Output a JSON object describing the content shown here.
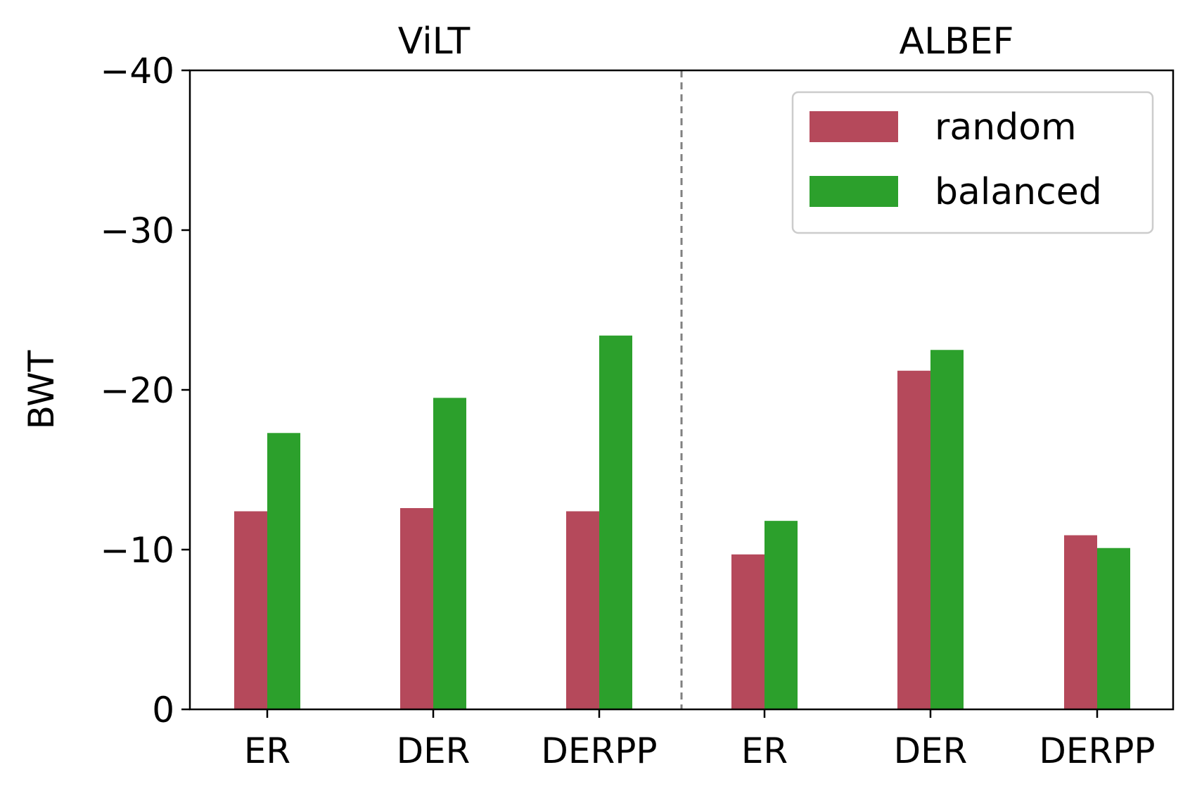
{
  "chart_data": {
    "type": "bar",
    "ylabel": "BWT",
    "xlabel": "",
    "yaxis_inverted": true,
    "ylim": [
      0,
      -40
    ],
    "yticks": [
      0,
      -10,
      -20,
      -30,
      -40
    ],
    "grid": false,
    "legend_position": "top-right",
    "groups": [
      {
        "title": "ViLT",
        "categories": [
          "ER",
          "DER",
          "DERPP"
        ],
        "series": [
          {
            "name": "random",
            "color": "#b5495b",
            "values": [
              -12.4,
              -12.6,
              -12.4
            ]
          },
          {
            "name": "balanced",
            "color": "#2ca02c",
            "values": [
              -17.3,
              -19.5,
              -23.4
            ]
          }
        ]
      },
      {
        "title": "ALBEF",
        "categories": [
          "ER",
          "DER",
          "DERPP"
        ],
        "series": [
          {
            "name": "random",
            "color": "#b5495b",
            "values": [
              -9.7,
              -21.2,
              -10.9
            ]
          },
          {
            "name": "balanced",
            "color": "#2ca02c",
            "values": [
              -11.8,
              -22.5,
              -10.1
            ]
          }
        ]
      }
    ],
    "legend": [
      {
        "label": "random",
        "color": "#b5495b"
      },
      {
        "label": "balanced",
        "color": "#2ca02c"
      }
    ]
  }
}
